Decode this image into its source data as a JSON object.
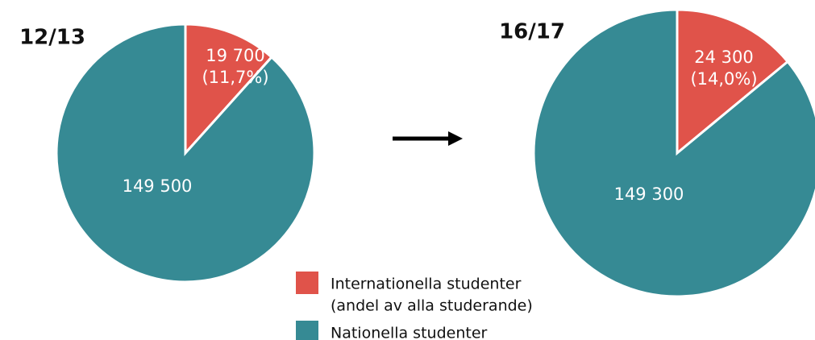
{
  "chart_data": [
    {
      "type": "pie",
      "title": "12/13",
      "values": [
        19700,
        149500
      ],
      "value_labels": [
        "19 700",
        "149 500"
      ],
      "share_labels": [
        "(11,7%)",
        null
      ],
      "colors": [
        "#e0534a",
        "#368a94"
      ]
    },
    {
      "type": "pie",
      "title": "16/17",
      "values": [
        24300,
        149300
      ],
      "value_labels": [
        "24 300",
        "149 300"
      ],
      "share_labels": [
        "(14,0%)",
        null
      ],
      "colors": [
        "#e0534a",
        "#368a94"
      ]
    }
  ],
  "legend": [
    {
      "lines": [
        "Internationella studenter",
        "(andel av alla studerande)"
      ],
      "color": "#e0534a"
    },
    {
      "lines": [
        "Nationella studenter"
      ],
      "color": "#368a94"
    }
  ]
}
